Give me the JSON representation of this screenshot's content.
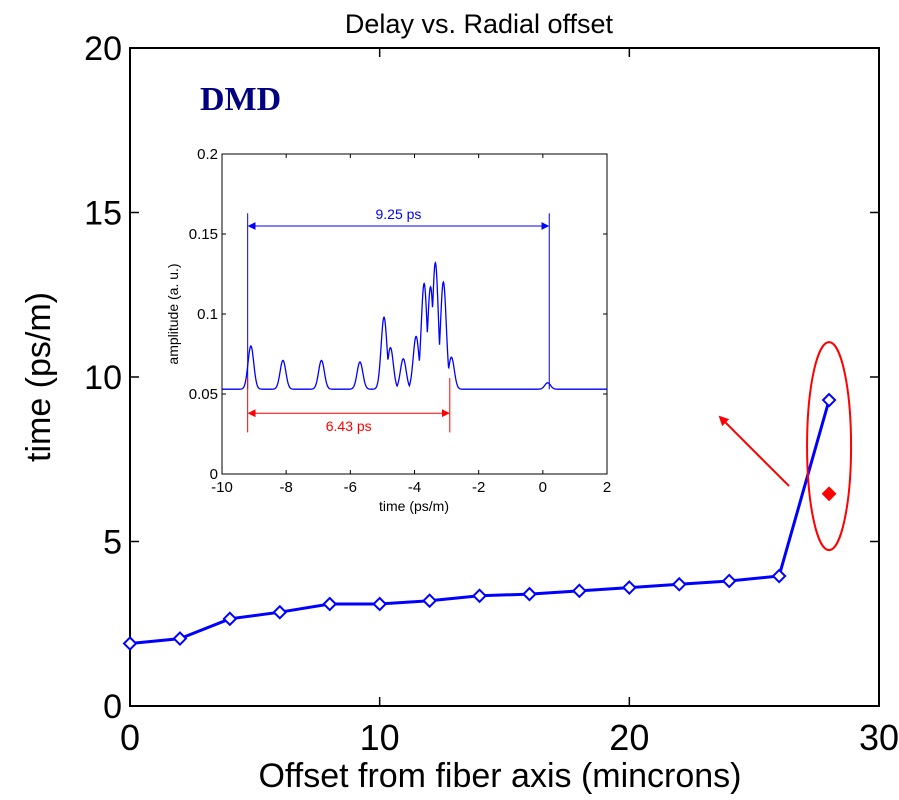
{
  "chart_data": [
    {
      "type": "line",
      "title": "Delay vs. Radial offset",
      "xlabel": "Offset from fiber axis (mincrons)",
      "ylabel": "time (ps/m)",
      "xlim": [
        0,
        30
      ],
      "ylim": [
        0,
        20
      ],
      "xticks": [
        "0",
        "10",
        "20",
        "30"
      ],
      "yticks": [
        "0",
        "5",
        "10",
        "15",
        "20"
      ],
      "grid": false,
      "series": [
        {
          "color": "#0000ff",
          "marker": "diamond",
          "x": [
            0,
            2,
            4,
            6,
            8,
            10,
            12,
            14,
            16,
            18,
            20,
            22,
            24,
            26,
            28
          ],
          "y": [
            1.9,
            2.05,
            2.65,
            2.85,
            3.1,
            3.1,
            3.2,
            3.35,
            3.4,
            3.5,
            3.6,
            3.7,
            3.8,
            3.95,
            9.3
          ]
        },
        {
          "color": "#ff0000",
          "marker": "filled-diamond",
          "x": [
            28
          ],
          "y": [
            6.45
          ]
        }
      ],
      "annotations": {
        "label": "DMD",
        "label_color": "#000080",
        "highlight_color": "#ff0000",
        "highlight_center": [
          28,
          7.9
        ],
        "arrow_color": "#ff0000"
      }
    },
    {
      "type": "line",
      "title": "",
      "xlabel": "time (ps/m)",
      "ylabel": "amplitude (a. u.)",
      "xlim": [
        -10,
        2
      ],
      "ylim": [
        0,
        0.2
      ],
      "xticks": [
        "-10",
        "-8",
        "-6",
        "-4",
        "-2",
        "0",
        "2"
      ],
      "yticks": [
        "0",
        "0.05",
        "0.1",
        "0.15",
        "0.2"
      ],
      "grid": false,
      "baseline": 0.053,
      "peaks": [
        {
          "x": -9.1,
          "y": 0.08
        },
        {
          "x": -8.1,
          "y": 0.071
        },
        {
          "x": -6.9,
          "y": 0.071
        },
        {
          "x": -5.7,
          "y": 0.07
        },
        {
          "x": -4.95,
          "y": 0.098
        },
        {
          "x": -4.75,
          "y": 0.079
        },
        {
          "x": -4.35,
          "y": 0.072
        },
        {
          "x": -3.95,
          "y": 0.086
        },
        {
          "x": -3.7,
          "y": 0.119
        },
        {
          "x": -3.5,
          "y": 0.117
        },
        {
          "x": -3.35,
          "y": 0.132
        },
        {
          "x": -3.1,
          "y": 0.12
        },
        {
          "x": -2.85,
          "y": 0.073
        },
        {
          "x": 0.15,
          "y": 0.057
        }
      ],
      "line_color": "#0000ff",
      "measurements": [
        {
          "label": "9.25 ps",
          "from": -9.2,
          "to": 0.2,
          "color": "#0000ff"
        },
        {
          "label": "6.43 ps",
          "from": -9.2,
          "to": -2.9,
          "color": "#ff0000"
        }
      ]
    }
  ]
}
